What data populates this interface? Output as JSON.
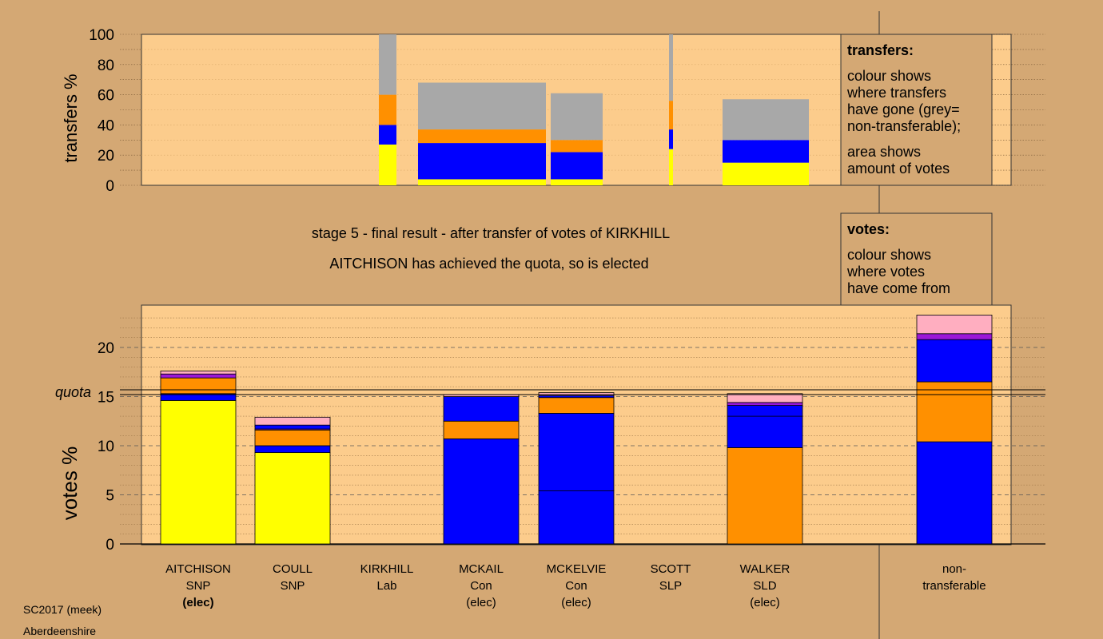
{
  "chart_data": {
    "type": "bar",
    "subtitle": "stage 5 - final result - after transfer of votes of KIRKHILL",
    "status": "AITCHISON has achieved the quota, so is elected",
    "colors": {
      "background": "#d4a874",
      "panel": "#fccc8c",
      "SNP": "#ffff00",
      "Con": "#0000ff",
      "SLD": "#ff9000",
      "Lab": "#9a18d8",
      "SLP": "#ffaec0",
      "non_transferable": "#a8a8a8"
    },
    "transfers_chart": {
      "ylabel": "transfers %",
      "yticks": [
        "0",
        "20",
        "40",
        "60",
        "80",
        "100"
      ],
      "ylim": [
        0,
        100
      ],
      "note": "stacked segments list [party, from %, to %]; bar width shows amount of votes",
      "bars": [
        {
          "candidate": "AITCHISON",
          "segments": [
            [
              "SNP",
              0,
              27
            ],
            [
              "Con",
              27,
              40
            ],
            [
              "SLD",
              40,
              60
            ],
            [
              "non_transferable",
              60,
              100
            ]
          ]
        },
        {
          "candidate": "KIRKHILL",
          "segments": [
            [
              "SNP",
              0,
              4
            ],
            [
              "Con",
              4,
              28
            ],
            [
              "SLD",
              28,
              37
            ],
            [
              "non_transferable",
              37,
              68
            ]
          ]
        },
        {
          "candidate": "MCKAIL",
          "segments": [
            [
              "SNP",
              0,
              4
            ],
            [
              "Con",
              4,
              22
            ],
            [
              "SLD",
              22,
              30
            ],
            [
              "non_transferable",
              30,
              61
            ]
          ]
        },
        {
          "candidate": "MCKELVIE",
          "segments": [
            [
              "SNP",
              0,
              24
            ],
            [
              "Con",
              24,
              37
            ],
            [
              "SLD",
              37,
              56
            ],
            [
              "non_transferable",
              56,
              100
            ]
          ]
        },
        {
          "candidate": "SCOTT",
          "segments": [
            [
              "SNP",
              0,
              15
            ],
            [
              "Con",
              15,
              30
            ],
            [
              "non_transferable",
              30,
              57
            ]
          ]
        }
      ]
    },
    "votes_chart": {
      "ylabel": "votes %",
      "yticks": [
        "0",
        "5",
        "10",
        "15",
        "20"
      ],
      "ylim": [
        0,
        23.5
      ],
      "quota": 15.2,
      "quota_label": "quota",
      "categories": [
        "AITCHISON",
        "COULL",
        "KIRKHILL",
        "MCKAIL",
        "MCKELVIE",
        "SCOTT",
        "WALKER",
        "non-transferable"
      ],
      "x_labels": [
        [
          "AITCHISON",
          "SNP",
          "(elec)"
        ],
        [
          "COULL",
          "SNP",
          ""
        ],
        [
          "KIRKHILL",
          "Lab",
          ""
        ],
        [
          "MCKAIL",
          "Con",
          "(elec)"
        ],
        [
          "MCKELVIE",
          "Con",
          "(elec)"
        ],
        [
          "SCOTT",
          "SLP",
          ""
        ],
        [
          "WALKER",
          "SLD",
          "(elec)"
        ],
        [
          "non-",
          "transferable",
          ""
        ]
      ],
      "stacks": [
        [
          [
            "SNP",
            14.6
          ],
          [
            "Con",
            0.7
          ],
          [
            "SLD",
            1.6
          ],
          [
            "Lab",
            0.4
          ],
          [
            "SLP",
            0.3
          ]
        ],
        [
          [
            "SNP",
            9.3
          ],
          [
            "Con",
            0.7
          ],
          [
            "SLD",
            1.6
          ],
          [
            "Lab",
            0.1
          ],
          [
            "Con",
            0.4
          ],
          [
            "SLP",
            0.8
          ]
        ],
        [],
        [
          [
            "Con",
            10.7
          ],
          [
            "SLD",
            1.8
          ],
          [
            "Con",
            2.5
          ],
          [
            "SLP",
            0.2
          ]
        ],
        [
          [
            "Con",
            5.4
          ],
          [
            "Con",
            7.9
          ],
          [
            "SLD",
            1.6
          ],
          [
            "Con",
            0.2
          ],
          [
            "SLP",
            0.3
          ]
        ],
        [],
        [
          [
            "SLD",
            9.8
          ],
          [
            "Con",
            3.2
          ],
          [
            "Con",
            1.1
          ],
          [
            "Lab",
            0.3
          ],
          [
            "SLP",
            0.9
          ]
        ],
        [
          [
            "Con",
            10.4
          ],
          [
            "SLD",
            6.1
          ],
          [
            "Con",
            4.3
          ],
          [
            "Lab",
            0.6
          ],
          [
            "SLP",
            1.9
          ]
        ]
      ]
    }
  },
  "legend": {
    "transfers_title": "transfers:",
    "transfers_text_1": [
      "colour shows",
      "where transfers",
      "have gone (grey=",
      "non-transferable);"
    ],
    "transfers_text_2": [
      "area shows",
      "amount of votes"
    ],
    "votes_title": "votes:",
    "votes_text": [
      "colour shows",
      "where votes",
      "have come from"
    ]
  },
  "footer": {
    "source": "SC2017 (meek)",
    "region": "Aberdeenshire"
  }
}
